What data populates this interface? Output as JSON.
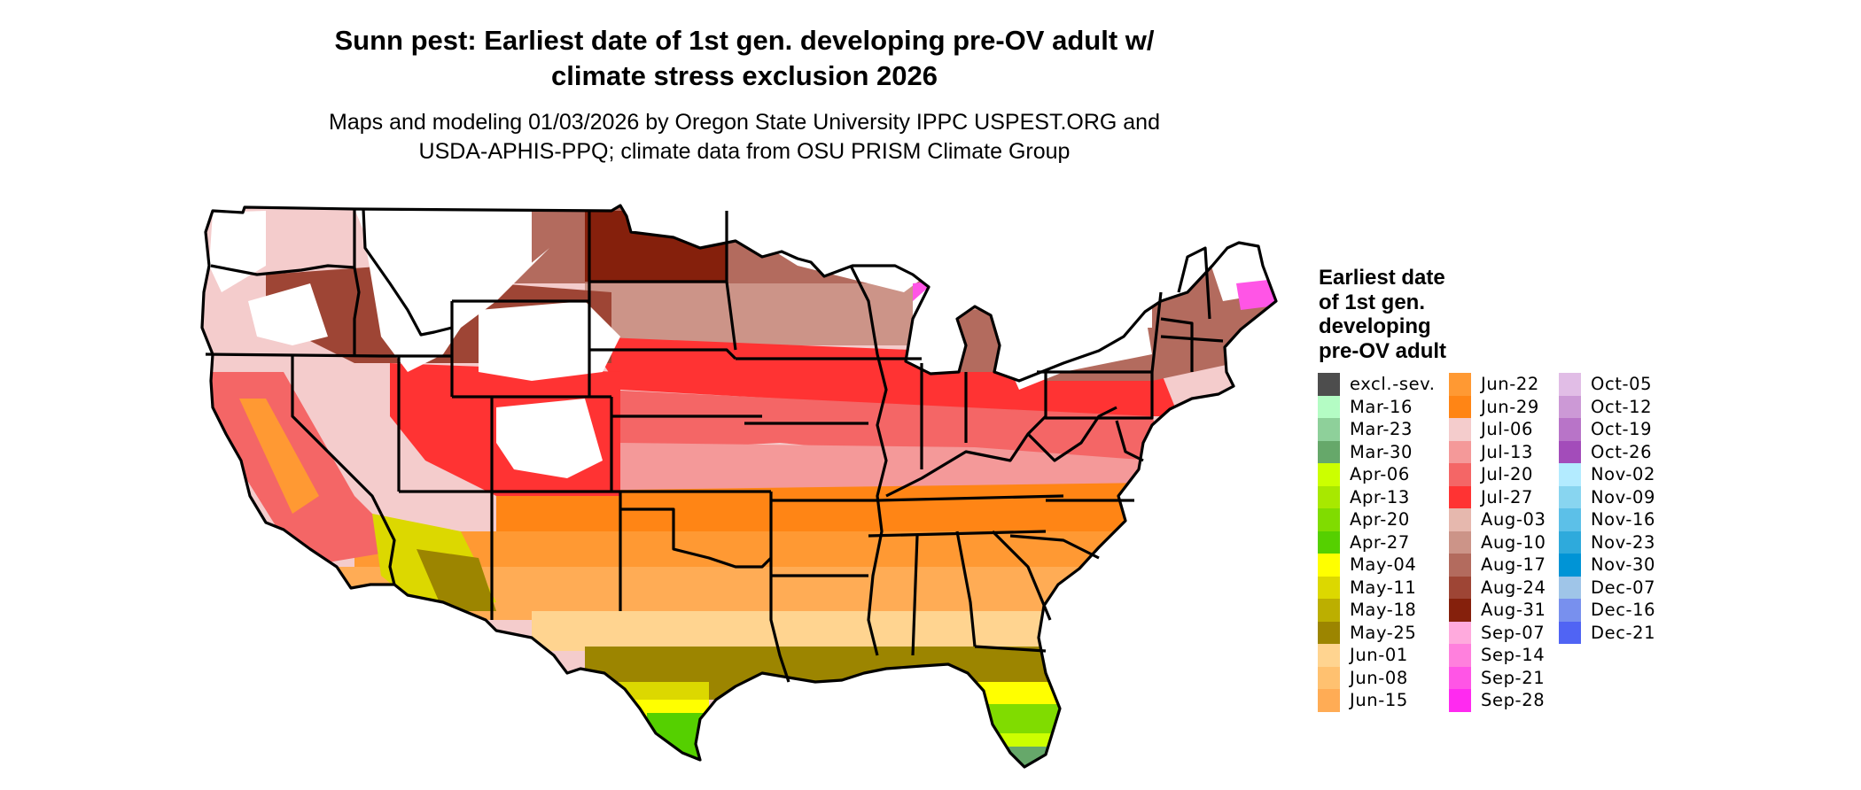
{
  "title": {
    "line1": "Sunn pest: Earliest date of 1st gen. developing pre-OV adult w/",
    "line2": "climate stress exclusion 2026"
  },
  "subtitle": {
    "line1": "Maps and modeling 01/03/2026 by Oregon State University IPPC USPEST.ORG and",
    "line2": "USDA-APHIS-PPQ; climate data from OSU PRISM Climate Group"
  },
  "map": {
    "region": "Contiguous United States",
    "state_borders": true,
    "unshaded_meaning": "excluded / no development"
  },
  "legend": {
    "title_lines": [
      "Earliest date",
      "of 1st gen.",
      "developing",
      "pre-OV adult"
    ],
    "columns": [
      [
        {
          "label": "excl.-sev.",
          "color": "#4d4d4d"
        },
        {
          "label": "Mar-16",
          "color": "#b4fcc4"
        },
        {
          "label": "Mar-23",
          "color": "#8ed09a"
        },
        {
          "label": "Mar-30",
          "color": "#66a86a"
        },
        {
          "label": "Apr-06",
          "color": "#ccff00"
        },
        {
          "label": "Apr-13",
          "color": "#a8e800"
        },
        {
          "label": "Apr-20",
          "color": "#80dc00"
        },
        {
          "label": "Apr-27",
          "color": "#55d000"
        },
        {
          "label": "May-04",
          "color": "#ffff00"
        },
        {
          "label": "May-11",
          "color": "#dcd800"
        },
        {
          "label": "May-18",
          "color": "#bcaf00"
        },
        {
          "label": "May-25",
          "color": "#9c8500"
        },
        {
          "label": "Jun-01",
          "color": "#ffd490"
        },
        {
          "label": "Jun-08",
          "color": "#ffc170"
        },
        {
          "label": "Jun-15",
          "color": "#ffac55"
        }
      ],
      [
        {
          "label": "Jun-22",
          "color": "#ff9933"
        },
        {
          "label": "Jun-29",
          "color": "#ff8515"
        },
        {
          "label": "Jul-06",
          "color": "#f4cccc"
        },
        {
          "label": "Jul-13",
          "color": "#f49999"
        },
        {
          "label": "Jul-20",
          "color": "#f46666"
        },
        {
          "label": "Jul-27",
          "color": "#ff3333"
        },
        {
          "label": "Aug-03",
          "color": "#e6b8ae"
        },
        {
          "label": "Aug-10",
          "color": "#cc9488"
        },
        {
          "label": "Aug-17",
          "color": "#b36b5e"
        },
        {
          "label": "Aug-24",
          "color": "#9e4535"
        },
        {
          "label": "Aug-31",
          "color": "#85200c"
        },
        {
          "label": "Sep-07",
          "color": "#ffaadd"
        },
        {
          "label": "Sep-14",
          "color": "#ff80dd"
        },
        {
          "label": "Sep-21",
          "color": "#ff55e6"
        },
        {
          "label": "Sep-28",
          "color": "#ff2af0"
        }
      ],
      [
        {
          "label": "Oct-05",
          "color": "#e1bde6"
        },
        {
          "label": "Oct-12",
          "color": "#cc99d6"
        },
        {
          "label": "Oct-19",
          "color": "#b874c8"
        },
        {
          "label": "Oct-26",
          "color": "#a34cba"
        },
        {
          "label": "Nov-02",
          "color": "#b3ebff"
        },
        {
          "label": "Nov-09",
          "color": "#88d5f0"
        },
        {
          "label": "Nov-16",
          "color": "#5cc0e8"
        },
        {
          "label": "Nov-23",
          "color": "#2eaadc"
        },
        {
          "label": "Nov-30",
          "color": "#0094d6"
        },
        {
          "label": "Dec-07",
          "color": "#9fc5e8"
        },
        {
          "label": "Dec-16",
          "color": "#7890ee"
        },
        {
          "label": "Dec-21",
          "color": "#5064f4"
        }
      ]
    ]
  }
}
